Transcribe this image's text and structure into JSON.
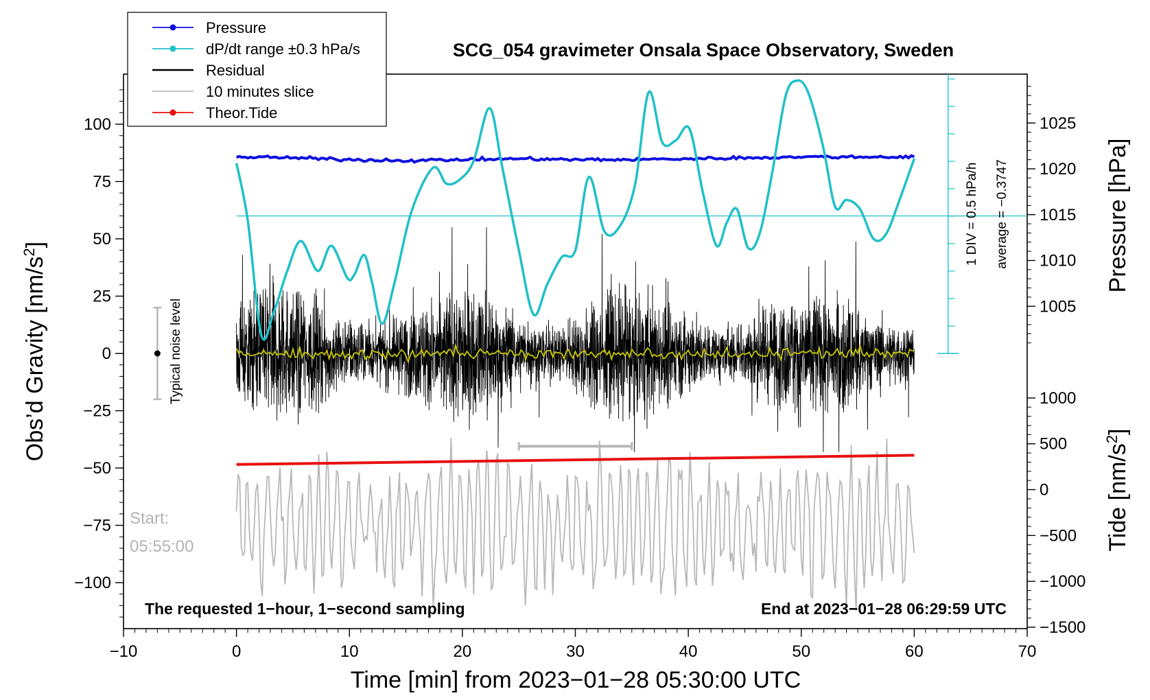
{
  "chart_data": {
    "type": "line",
    "title": "SCG_054 gravimeter Onsala Space Observatory, Sweden",
    "xlabel": "Time [min] from 2023−01−28 05:30:00 UTC",
    "ylabel_left": "Obs’d Gravity [nm/s",
    "ylabel_left_sup": "2",
    "ylabel_left_close": "]",
    "ylabel_right_pressure": "Pressure [hPa]",
    "ylabel_right_tide": "Tide [nm/s",
    "ylabel_right_tide_sup": "2",
    "ylabel_right_tide_close": "]",
    "xlim": [
      -10,
      70
    ],
    "ylim_left": [
      -120,
      120
    ],
    "x_ticks": [
      -10,
      0,
      10,
      20,
      30,
      40,
      50,
      60,
      70
    ],
    "x_tick_labels": [
      "−10",
      "0",
      "10",
      "20",
      "30",
      "40",
      "50",
      "60",
      "70"
    ],
    "y_left_ticks": [
      -100,
      -75,
      -50,
      -25,
      0,
      25,
      50,
      75,
      100
    ],
    "y_left_tick_labels": [
      "−100",
      "−75",
      "−50",
      "−25",
      "0",
      "25",
      "50",
      "75",
      "100"
    ],
    "pressure_axis": {
      "ticks": [
        1005,
        1010,
        1015,
        1020,
        1025
      ],
      "tick_labels": [
        "1005",
        "1010",
        "1015",
        "1020",
        "1025"
      ],
      "range": [
        1000,
        1030
      ]
    },
    "tide_axis": {
      "ticks": [
        -1500,
        -1000,
        -500,
        0,
        500,
        1000
      ],
      "tick_labels": [
        "−1500",
        "−1000",
        "−500",
        "0",
        "500",
        "1000"
      ],
      "range": [
        -1500,
        1000
      ]
    },
    "legend": {
      "position": "top-left",
      "entries": [
        {
          "label": "Pressure",
          "color": "#1010e0",
          "marker": true
        },
        {
          "label": "dP/dt range ±0.3 hPa/s",
          "color": "#20c0c8",
          "marker": true
        },
        {
          "label": "Residual",
          "color": "#000000",
          "marker": false
        },
        {
          "label": "10 minutes slice",
          "color": "#b8b8b8",
          "marker": false
        },
        {
          "label": "Theor.Tide",
          "color": "#e81010",
          "marker": true
        }
      ]
    },
    "series": [
      {
        "name": "Pressure",
        "axis": "pressure",
        "color": "#1010e0",
        "x": [
          0,
          5,
          10,
          15,
          20,
          25,
          30,
          35,
          40,
          45,
          50,
          55,
          60
        ],
        "values": [
          1021.3,
          1021.2,
          1021.0,
          1020.9,
          1021.0,
          1021.1,
          1021.0,
          1021.0,
          1021.1,
          1021.2,
          1021.3,
          1021.3,
          1021.3
        ]
      },
      {
        "name": "dP/dt",
        "axis": "dpdt",
        "color": "#20c0c8",
        "x": [
          0,
          1,
          2.2,
          3.3,
          4.5,
          5.7,
          7.2,
          8.4,
          9.8,
          10.4,
          11.3,
          12,
          12.9,
          14,
          15.5,
          17.4,
          18.6,
          19.8,
          21,
          22.4,
          23.5,
          25,
          26.3,
          27.5,
          28.8,
          30,
          31.2,
          32.6,
          34,
          35.3,
          36.5,
          37.7,
          38.9,
          40.1,
          41.3,
          42.5,
          43.4,
          44.3,
          45.3,
          46.3,
          47.4,
          48.6,
          49.6,
          50.6,
          51.9,
          53,
          54,
          55.2,
          56.4,
          57.5,
          58.7,
          60
        ],
        "values": [
          83,
          58,
          8,
          18,
          36,
          49,
          36,
          47,
          33,
          34,
          43,
          31,
          13,
          31,
          62,
          81,
          74,
          76,
          84,
          107,
          82,
          45,
          17,
          30,
          42,
          45,
          77,
          53,
          56,
          74,
          114,
          92,
          93,
          98,
          70,
          47,
          57,
          63,
          46,
          52,
          78,
          112,
          119,
          114,
          91,
          64,
          67,
          63,
          50,
          52,
          67,
          85
        ]
      },
      {
        "name": "Theor.Tide",
        "axis": "tide",
        "color": "#e81010",
        "x": [
          0,
          60
        ],
        "values": [
          275,
          375
        ]
      }
    ],
    "dpdt_reference": {
      "annotation_div": "1 DIV = 0.5 hPa/h",
      "annotation_avg": "average = −0.3747",
      "average": -0.3747,
      "division_hpa_per_h": 0.5
    },
    "residual": {
      "x_range_min": [
        0,
        60
      ],
      "amplitude_nm_s2": 25,
      "smoothed_color": "#c8c800",
      "color": "#000000"
    },
    "slice": {
      "start_min": 25,
      "end_min": 35,
      "color": "#b8b8b8",
      "label_start": "Start:",
      "label_time": "05:55:00"
    },
    "noise_level": {
      "label": "Typical noise level",
      "x_min": -7,
      "center": 0,
      "half_range": 20
    },
    "annotation_left_bottom": "The requested 1−hour, 1−second sampling",
    "annotation_right_bottom": "End at 2023−01−28 06:29:59 UTC"
  }
}
